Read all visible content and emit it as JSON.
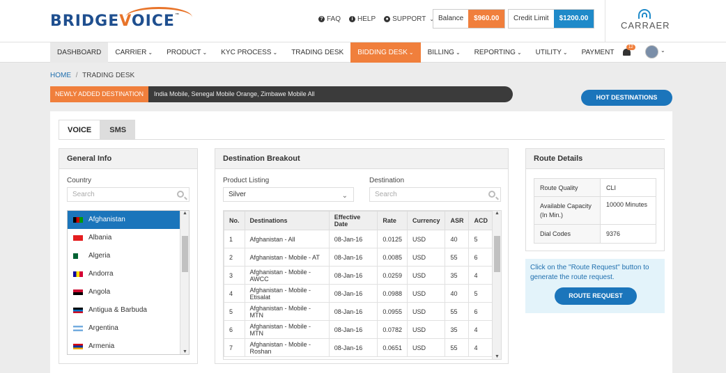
{
  "brand": {
    "logo_text": "BRIDGEVOICE",
    "logo_prefix": "BRIDGE",
    "logo_v": "V",
    "logo_suffix": "OICE",
    "trademark": "™",
    "partner_logo": "CARRAER"
  },
  "header": {
    "links": [
      {
        "label": "FAQ",
        "icon": "question-circle-icon"
      },
      {
        "label": "HELP",
        "icon": "info-circle-icon"
      },
      {
        "label": "SUPPORT",
        "icon": "chevron-down-icon"
      }
    ],
    "balance_label": "Balance",
    "balance_value": "$960.00",
    "credit_label": "Credit Limit",
    "credit_value": "$1200.00",
    "notification_count": "12"
  },
  "nav": {
    "items": [
      {
        "label": "DASHBOARD",
        "dropdown": false
      },
      {
        "label": "CARRIER",
        "dropdown": true
      },
      {
        "label": "PRODUCT",
        "dropdown": true
      },
      {
        "label": "KYC PROCESS",
        "dropdown": true
      },
      {
        "label": "TRADING DESK",
        "dropdown": false
      },
      {
        "label": "BIDDING DESK",
        "dropdown": true
      },
      {
        "label": "BILLING",
        "dropdown": true
      },
      {
        "label": "REPORTING",
        "dropdown": true
      },
      {
        "label": "UTILITY",
        "dropdown": true
      },
      {
        "label": "PAYMENT",
        "dropdown": false
      }
    ]
  },
  "breadcrumb": {
    "home": "HOME",
    "separator": "/",
    "current": "TRADING DESK"
  },
  "ticker": {
    "tag": "NEWLY ADDED DESTINATION",
    "message": "India Mobile, Senegal Mobile Orange, Zimbawe Mobile All"
  },
  "hot_destinations_label": "HOT DESTINATIONS",
  "tabs": [
    {
      "label": "VOICE"
    },
    {
      "label": "SMS"
    }
  ],
  "general_info": {
    "title": "General Info",
    "country_label": "Country",
    "search_placeholder": "Search",
    "countries": [
      "Afghanistan",
      "Albania",
      "Algeria",
      "Andorra",
      "Angola",
      "Antigua & Barbuda",
      "Argentina",
      "Armenia"
    ],
    "selected_country": "Afghanistan"
  },
  "breakout": {
    "title": "Destination Breakout",
    "product_label": "Product Listing",
    "product_value": "Silver",
    "destination_label": "Destination",
    "destination_placeholder": "Search",
    "columns": [
      "No.",
      "Destinations",
      "Effective Date",
      "Rate",
      "Currency",
      "ASR",
      "ACD"
    ],
    "rows": [
      [
        "1",
        "Afghanistan - All",
        "08-Jan-16",
        "0.0125",
        "USD",
        "40",
        "5"
      ],
      [
        "2",
        "Afghanistan - Mobile - AT",
        "08-Jan-16",
        "0.0085",
        "USD",
        "55",
        "6"
      ],
      [
        "3",
        "Afghanistan - Mobile - AWCC",
        "08-Jan-16",
        "0.0259",
        "USD",
        "35",
        "4"
      ],
      [
        "4",
        "Afghanistan - Mobile - Etisalat",
        "08-Jan-16",
        "0.0988",
        "USD",
        "40",
        "5"
      ],
      [
        "5",
        "Afghanistan - Mobile - MTN",
        "08-Jan-16",
        "0.0955",
        "USD",
        "55",
        "6"
      ],
      [
        "6",
        "Afghanistan - Mobile - MTN",
        "08-Jan-16",
        "0.0782",
        "USD",
        "35",
        "4"
      ],
      [
        "7",
        "Afghanistan - Mobile - Roshan",
        "08-Jan-16",
        "0.0651",
        "USD",
        "55",
        "4"
      ]
    ]
  },
  "route_details": {
    "title": "Route Details",
    "rows": [
      [
        "Route Quality",
        "CLI"
      ],
      [
        "Available Capacity (In Min.)",
        "10000 Minutes"
      ],
      [
        "Dial Codes",
        "9376"
      ]
    ],
    "info_text": "Click on the \"Route Request\" button to generate the route request.",
    "button_label": "ROUTE REQUEST"
  },
  "colors": {
    "accent_blue": "#1b75bb",
    "accent_orange": "#f07f3c",
    "credit_blue": "#1f8ac9"
  }
}
